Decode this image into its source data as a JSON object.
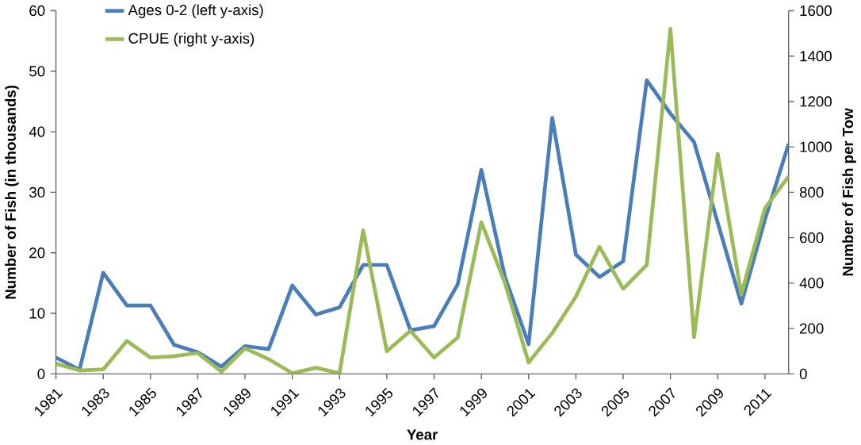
{
  "chart_data": {
    "type": "line",
    "xlabel": "Year",
    "ylabel": "Number of Fish (in thousands)",
    "y2label": "Number of Fish per Tow",
    "x": [
      1981,
      1982,
      1983,
      1984,
      1985,
      1986,
      1987,
      1988,
      1989,
      1990,
      1991,
      1992,
      1993,
      1994,
      1995,
      1996,
      1997,
      1998,
      1999,
      2000,
      2001,
      2002,
      2003,
      2004,
      2005,
      2006,
      2007,
      2008,
      2009,
      2010,
      2011,
      2012
    ],
    "series": [
      {
        "name": "Ages 0-2 (left y-axis)",
        "color": "#4a7ebb",
        "values": [
          2.7,
          0.7,
          16.7,
          11.3,
          11.3,
          4.8,
          3.6,
          1.2,
          4.6,
          4.1,
          14.6,
          9.8,
          11,
          18,
          18,
          7.2,
          7.9,
          14.8,
          33.7,
          16,
          4.9,
          42.3,
          19.7,
          16,
          18.6,
          48.5,
          43,
          38.3,
          25,
          11.6,
          25.5,
          38
        ]
      },
      {
        "name": "CPUE (right y-axis)",
        "color": "#9bbb59",
        "axis": "y2",
        "values": [
          45,
          15,
          20,
          145,
          72,
          78,
          92,
          10,
          113,
          65,
          3,
          27,
          3,
          632,
          100,
          190,
          72,
          160,
          668,
          400,
          50,
          180,
          340,
          560,
          375,
          480,
          1520,
          162,
          970,
          350,
          730,
          870
        ]
      }
    ],
    "xlim": [
      1981,
      2012
    ],
    "xticks": [
      1981,
      1983,
      1985,
      1987,
      1989,
      1991,
      1993,
      1995,
      1997,
      1999,
      2001,
      2003,
      2005,
      2007,
      2009,
      2011
    ],
    "ylim": [
      0,
      60
    ],
    "yticks": [
      0,
      10,
      20,
      30,
      40,
      50,
      60
    ],
    "y2lim": [
      0,
      1600
    ],
    "y2ticks": [
      0,
      200,
      400,
      600,
      800,
      1000,
      1200,
      1400,
      1600
    ],
    "legend": "top left",
    "grid": false,
    "marker": "none",
    "line_style": "solid"
  }
}
